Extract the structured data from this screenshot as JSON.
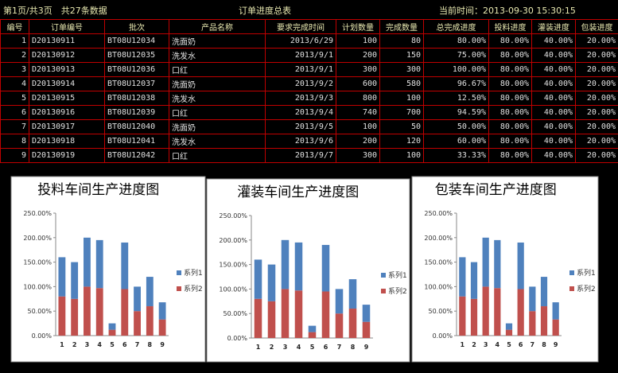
{
  "header": {
    "left": "第1页/共3页　共27条数据",
    "center": "订单进度总表",
    "right": "当前时间：2013-09-30 15:30:15"
  },
  "table": {
    "columns": [
      "编号",
      "订单编号",
      "批次",
      "产品名称",
      "要求完成时间",
      "计划数量",
      "完成数量",
      "总完成进度",
      "投料进度",
      "灌装进度",
      "包装进度"
    ],
    "rows": [
      [
        "1",
        "D20130911",
        "BT08U12034",
        "洗面奶",
        "2013/6/29",
        "100",
        "80",
        "80.00%",
        "80.00%",
        "40.00%",
        "20.00%"
      ],
      [
        "2",
        "D20130912",
        "BT08U12035",
        "洗发水",
        "2013/9/1",
        "200",
        "150",
        "75.00%",
        "80.00%",
        "40.00%",
        "20.00%"
      ],
      [
        "3",
        "D20130913",
        "BT08U12036",
        "口红",
        "2013/9/1",
        "300",
        "300",
        "100.00%",
        "80.00%",
        "40.00%",
        "20.00%"
      ],
      [
        "4",
        "D20130914",
        "BT08U12037",
        "洗面奶",
        "2013/9/2",
        "600",
        "580",
        "96.67%",
        "80.00%",
        "40.00%",
        "20.00%"
      ],
      [
        "5",
        "D20130915",
        "BT08U12038",
        "洗发水",
        "2013/9/3",
        "800",
        "100",
        "12.50%",
        "80.00%",
        "40.00%",
        "20.00%"
      ],
      [
        "6",
        "D20130916",
        "BT08U12039",
        "口红",
        "2013/9/4",
        "740",
        "700",
        "94.59%",
        "80.00%",
        "40.00%",
        "20.00%"
      ],
      [
        "7",
        "D20130917",
        "BT08U12040",
        "洗面奶",
        "2013/9/5",
        "100",
        "50",
        "50.00%",
        "80.00%",
        "40.00%",
        "20.00%"
      ],
      [
        "8",
        "D20130918",
        "BT08U12041",
        "洗发水",
        "2013/9/6",
        "200",
        "120",
        "60.00%",
        "80.00%",
        "40.00%",
        "20.00%"
      ],
      [
        "9",
        "D20130919",
        "BT08U12042",
        "口红",
        "2013/9/7",
        "300",
        "100",
        "33.33%",
        "80.00%",
        "40.00%",
        "20.00%"
      ]
    ]
  },
  "chart_data": [
    {
      "type": "stacked_bar",
      "title": "投料车间生产进度图",
      "categories": [
        "1",
        "2",
        "3",
        "4",
        "5",
        "6",
        "7",
        "8",
        "9"
      ],
      "series": [
        {
          "name": "系列1",
          "color": "#4f81bd",
          "values": [
            80,
            75,
            100,
            98,
            13,
            95,
            50,
            60,
            35
          ]
        },
        {
          "name": "系列2",
          "color": "#c0504d",
          "values": [
            80,
            75,
            100,
            97,
            12,
            95,
            50,
            60,
            33
          ]
        }
      ],
      "ylim": [
        0,
        250
      ],
      "yticks": [
        {
          "value": 0,
          "label": "0.00%"
        },
        {
          "value": 50,
          "label": "50.00%"
        },
        {
          "value": 100,
          "label": "100.00%"
        },
        {
          "value": 150,
          "label": "150.00%"
        },
        {
          "value": 200,
          "label": "200.00%"
        },
        {
          "value": 250,
          "label": "250.00%"
        }
      ],
      "legend": "right"
    },
    {
      "type": "stacked_bar",
      "title": "灌装车间生产进度图",
      "categories": [
        "1",
        "2",
        "3",
        "4",
        "5",
        "6",
        "7",
        "8",
        "9"
      ],
      "series": [
        {
          "name": "系列1",
          "color": "#4f81bd",
          "values": [
            80,
            75,
            100,
            98,
            13,
            95,
            50,
            60,
            35
          ]
        },
        {
          "name": "系列2",
          "color": "#c0504d",
          "values": [
            80,
            75,
            100,
            97,
            12,
            95,
            50,
            60,
            33
          ]
        }
      ],
      "ylim": [
        0,
        250
      ],
      "yticks": [
        {
          "value": 0,
          "label": "0.00%"
        },
        {
          "value": 50,
          "label": "50.00%"
        },
        {
          "value": 100,
          "label": "100.00%"
        },
        {
          "value": 150,
          "label": "150.00%"
        },
        {
          "value": 200,
          "label": "200.00%"
        },
        {
          "value": 250,
          "label": "250.00%"
        }
      ],
      "legend": "right"
    },
    {
      "type": "stacked_bar",
      "title": "包装车间生产进度图",
      "categories": [
        "1",
        "2",
        "3",
        "4",
        "5",
        "6",
        "7",
        "8",
        "9"
      ],
      "series": [
        {
          "name": "系列1",
          "color": "#4f81bd",
          "values": [
            80,
            75,
            100,
            98,
            13,
            95,
            50,
            60,
            35
          ]
        },
        {
          "name": "系列2",
          "color": "#c0504d",
          "values": [
            80,
            75,
            100,
            97,
            12,
            95,
            50,
            60,
            33
          ]
        }
      ],
      "ylim": [
        0,
        250
      ],
      "yticks": [
        {
          "value": 0,
          "label": "0.00%"
        },
        {
          "value": 50,
          "label": "50.00%"
        },
        {
          "value": 100,
          "label": "100.00%"
        },
        {
          "value": 150,
          "label": "150.00%"
        },
        {
          "value": 200,
          "label": "200.00%"
        },
        {
          "value": 250,
          "label": "250.00%"
        }
      ],
      "legend": "right"
    }
  ]
}
